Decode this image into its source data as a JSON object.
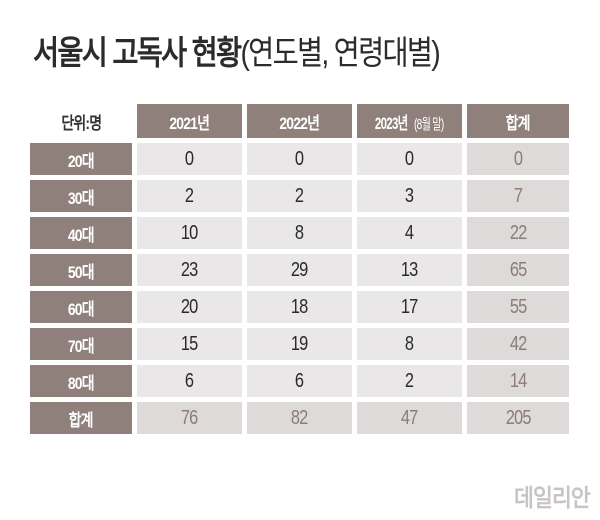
{
  "title": {
    "main": "서울시 고독사 현황",
    "sub": "(연도별, 연령대별)"
  },
  "table": {
    "unit_label": "단위:명",
    "columns": [
      {
        "label": "2021년",
        "note": ""
      },
      {
        "label": "2022년",
        "note": ""
      },
      {
        "label": "2023년",
        "note": "(8월 말)"
      },
      {
        "label": "합계",
        "note": ""
      }
    ],
    "rows": [
      {
        "label": "20대",
        "values": [
          "0",
          "0",
          "0"
        ],
        "total": "0"
      },
      {
        "label": "30대",
        "values": [
          "2",
          "2",
          "3"
        ],
        "total": "7"
      },
      {
        "label": "40대",
        "values": [
          "10",
          "8",
          "4"
        ],
        "total": "22"
      },
      {
        "label": "50대",
        "values": [
          "23",
          "29",
          "13"
        ],
        "total": "65"
      },
      {
        "label": "60대",
        "values": [
          "20",
          "18",
          "17"
        ],
        "total": "55"
      },
      {
        "label": "70대",
        "values": [
          "15",
          "19",
          "8"
        ],
        "total": "42"
      },
      {
        "label": "80대",
        "values": [
          "6",
          "6",
          "2"
        ],
        "total": "14"
      }
    ],
    "total_row": {
      "label": "합계",
      "values": [
        "76",
        "82",
        "47"
      ],
      "total": "205"
    }
  },
  "watermark": "데일리안",
  "colors": {
    "header_bg": "#8f807c",
    "value_bg": "#e9e7e7",
    "total_bg": "#dedada",
    "total_text": "#8a7c79"
  }
}
